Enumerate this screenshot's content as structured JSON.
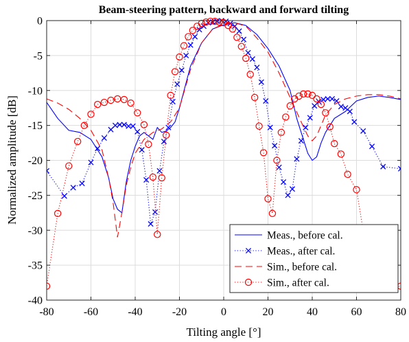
{
  "chart_data": {
    "type": "line",
    "title": "Beam-steering pattern, backward and forward tilting",
    "xlabel": "Tilting angle [°]",
    "ylabel": "Normalized amplitude [dB]",
    "xlim": [
      -80,
      80
    ],
    "ylim": [
      -40,
      0
    ],
    "xticks": [
      -80,
      -60,
      -40,
      -20,
      0,
      20,
      40,
      60,
      80
    ],
    "yticks": [
      0,
      -5,
      -10,
      -15,
      -20,
      -25,
      -30,
      -35,
      -40
    ],
    "grid": true,
    "legend_position": "bottom-right",
    "series": [
      {
        "name": "Meas., before cal.",
        "color": "#0000ff",
        "line": "solid",
        "marker": "none",
        "x": [
          -80,
          -75,
          -70,
          -65,
          -60,
          -55,
          -52,
          -50,
          -48,
          -46,
          -44,
          -42,
          -40,
          -38,
          -36,
          -34,
          -32,
          -30,
          -28,
          -26,
          -24,
          -22,
          -20,
          -15,
          -10,
          -5,
          0,
          5,
          10,
          15,
          20,
          25,
          30,
          33,
          36,
          38,
          40,
          42,
          44,
          46,
          50,
          55,
          60,
          65,
          70,
          75,
          80
        ],
        "y": [
          -11.7,
          -14,
          -15.7,
          -16,
          -17,
          -19.5,
          -22.5,
          -25.5,
          -27,
          -27.5,
          -23,
          -20,
          -18,
          -16.5,
          -16,
          -16.5,
          -17,
          -15.3,
          -16,
          -15.8,
          -15.3,
          -14.5,
          -12.5,
          -6.5,
          -3.2,
          -1.2,
          -0.6,
          -0.3,
          -0.7,
          -2,
          -4,
          -6.5,
          -10,
          -14,
          -17,
          -19,
          -20,
          -19.5,
          -17.5,
          -16,
          -14,
          -13,
          -11.5,
          -11,
          -10.8,
          -11,
          -11.3
        ]
      },
      {
        "name": "Meas., after cal.",
        "color": "#0000ff",
        "line": "dotted",
        "marker": "x",
        "x": [
          -80,
          -72,
          -68,
          -64,
          -60,
          -57,
          -54,
          -51,
          -49,
          -47,
          -45,
          -43,
          -41,
          -39,
          -37,
          -35,
          -33,
          -31,
          -29,
          -27,
          -25,
          -23,
          -21,
          -19,
          -17,
          -15,
          -13,
          -11,
          -9,
          -7,
          -5,
          -3,
          -1,
          1,
          3,
          5,
          7,
          9,
          11,
          13,
          15,
          17,
          19,
          21,
          23,
          25,
          27,
          29,
          31,
          33,
          35,
          37,
          39,
          41,
          43,
          45,
          47,
          49,
          51,
          53,
          55,
          57,
          59,
          63,
          67,
          72,
          80
        ],
        "y": [
          -21.5,
          -25.1,
          -23.9,
          -23.3,
          -20.3,
          -18.3,
          -16.8,
          -15.6,
          -15,
          -14.9,
          -14.9,
          -15.1,
          -15.1,
          -15.9,
          -18.5,
          -22.8,
          -29.1,
          -27.4,
          -21.5,
          -17.3,
          -15.3,
          -11.6,
          -9.1,
          -7.1,
          -5,
          -3.5,
          -2.3,
          -1.3,
          -0.8,
          -0.3,
          -0.2,
          -0.1,
          0,
          -0.1,
          -0.4,
          -0.8,
          -1.5,
          -2.7,
          -4.6,
          -5.5,
          -6.7,
          -8.8,
          -11.5,
          -15.3,
          -17.9,
          -21,
          -23.1,
          -25,
          -24.1,
          -19.8,
          -17.2,
          -15.3,
          -13.9,
          -12.2,
          -11.6,
          -11.3,
          -11.2,
          -11.2,
          -11.5,
          -12.3,
          -12.5,
          -13,
          -14.5,
          -15.8,
          -18,
          -20.9,
          -21.2
        ]
      },
      {
        "name": "Sim., before cal.",
        "color": "#ff0000",
        "line": "dashed",
        "marker": "none",
        "x": [
          -80,
          -75,
          -70,
          -65,
          -60,
          -55,
          -52,
          -50,
          -48,
          -46,
          -44,
          -42,
          -40,
          -36,
          -32,
          -28,
          -24,
          -20,
          -15,
          -10,
          -5,
          0,
          5,
          10,
          15,
          20,
          25,
          30,
          35,
          38,
          40,
          42,
          44,
          46,
          50,
          55,
          60,
          65,
          70,
          75,
          80
        ],
        "y": [
          -11.2,
          -11.8,
          -12.7,
          -14,
          -15.7,
          -18.5,
          -22.5,
          -26,
          -31,
          -27.5,
          -23.5,
          -21,
          -19,
          -17,
          -16,
          -15.5,
          -14.5,
          -12.5,
          -7,
          -3.2,
          -1.2,
          -0.5,
          -0.3,
          -0.8,
          -2.5,
          -4.5,
          -7.5,
          -11,
          -14.5,
          -16.5,
          -17.2,
          -16.5,
          -15,
          -13.5,
          -12,
          -11.2,
          -10.8,
          -10.6,
          -10.6,
          -10.8,
          -11.2
        ]
      },
      {
        "name": "Sim., after cal.",
        "color": "#ff0000",
        "line": "dotted",
        "marker": "o",
        "x": [
          -80,
          -75,
          -70,
          -66,
          -63,
          -60,
          -57,
          -54,
          -51,
          -48,
          -45,
          -42,
          -39,
          -36,
          -34,
          -32,
          -30,
          -28,
          -26,
          -24,
          -22,
          -20,
          -18,
          -16,
          -14,
          -12,
          -10,
          -8,
          -6,
          -4,
          -2,
          0,
          2,
          4,
          6,
          8,
          10,
          12,
          14,
          16,
          18,
          20,
          22,
          24,
          26,
          28,
          30,
          32,
          34,
          36,
          38,
          40,
          42,
          44,
          46,
          48,
          50,
          53,
          56,
          60,
          63,
          66,
          70,
          75,
          80
        ],
        "y": [
          -38,
          -27.6,
          -20.8,
          -17.3,
          -15,
          -13.4,
          -12,
          -11.7,
          -11.4,
          -11.2,
          -11.3,
          -11.8,
          -13.2,
          -14.9,
          -17.7,
          -22.4,
          -30.6,
          -22.5,
          -16.4,
          -10.7,
          -7.3,
          -5.2,
          -3.6,
          -2.3,
          -1.4,
          -0.8,
          -0.4,
          -0.2,
          -0.1,
          -0.1,
          -0.2,
          -0.3,
          -0.7,
          -1.2,
          -2.4,
          -3.7,
          -5.4,
          -7.7,
          -11,
          -15.1,
          -18.9,
          -25.5,
          -27.6,
          -20,
          -16,
          -13.8,
          -12.2,
          -11.2,
          -10.8,
          -10.5,
          -10.5,
          -10.7,
          -11.2,
          -12,
          -13.2,
          -15.2,
          -17.6,
          -19.1,
          -22,
          -24.2,
          -30,
          -38,
          -38.1,
          -38.1,
          -38
        ]
      }
    ]
  }
}
